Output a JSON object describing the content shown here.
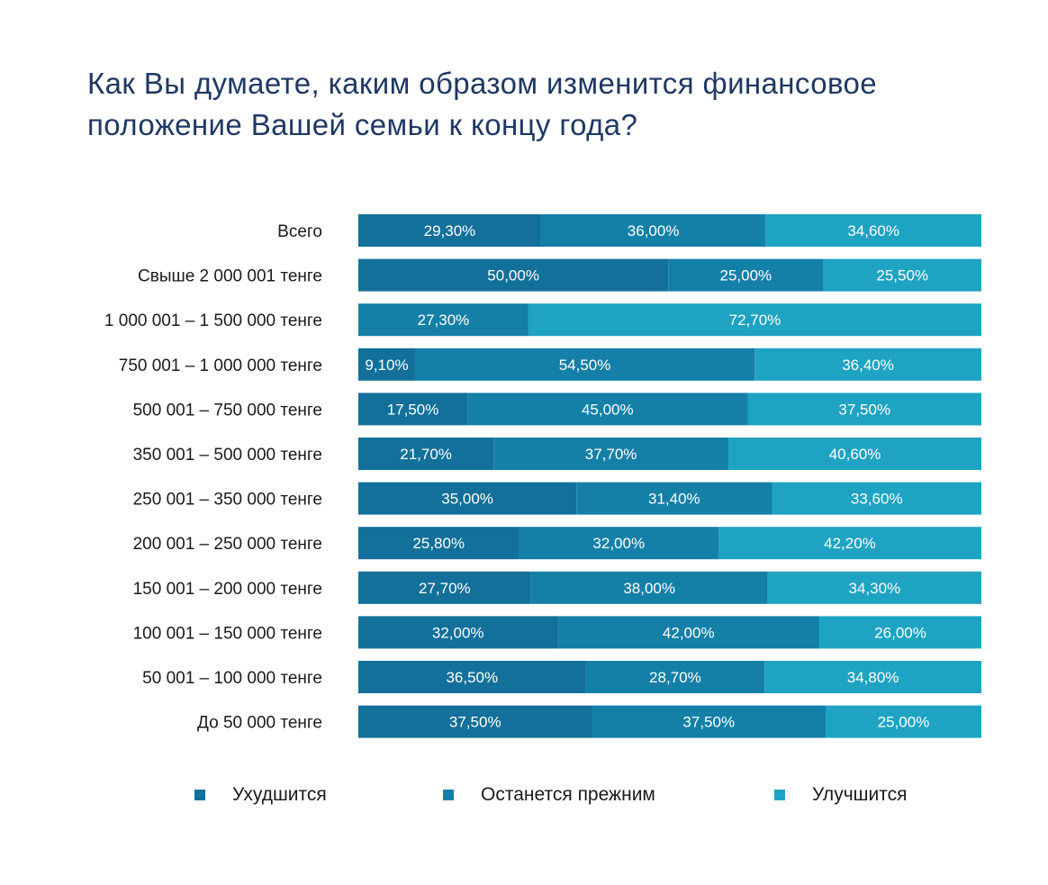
{
  "title": {
    "line1": "Как Вы думаете, каким образом изменится финансовое",
    "line2": "положение Вашей семьи  к концу года?"
  },
  "colors": {
    "worse": "#12709a",
    "same": "#1480a8",
    "better": "#1fa3c3"
  },
  "chart_data": {
    "type": "bar",
    "orientation": "horizontal",
    "stacked": true,
    "normalized": true,
    "grid": false,
    "legend_position": "bottom",
    "categories": [
      "Всего",
      "Свыше 2 000 001 тенге",
      "1 000 001 – 1 500 000 тенге",
      "750 001 – 1 000 000 тенге",
      "500 001 – 750 000 тенге",
      "350 001 – 500 000 тенге",
      "250 001 – 350 000 тенге",
      "200 001 – 250 000 тенге",
      "150 001 – 200 000 тенге",
      "100 001 – 150 000 тенге",
      "50 001 – 100 000 тенге",
      "До 50 000 тенге"
    ],
    "series": [
      {
        "name": "Ухудшится",
        "color": "#12709a",
        "values": [
          29.3,
          50.0,
          0,
          9.1,
          17.5,
          21.7,
          35.0,
          25.8,
          27.7,
          32.0,
          36.5,
          37.5
        ],
        "labels": [
          "29,30%",
          "50,00%",
          "",
          "9,10%",
          "17,50%",
          "21,70%",
          "35,00%",
          "25,80%",
          "27,70%",
          "32,00%",
          "36,50%",
          "37,50%"
        ]
      },
      {
        "name": "Останется прежним",
        "color": "#1480a8",
        "values": [
          36.0,
          25.0,
          27.3,
          54.5,
          45.0,
          37.7,
          31.4,
          32.0,
          38.0,
          42.0,
          28.7,
          37.5
        ],
        "labels": [
          "36,00%",
          "25,00%",
          "27,30%",
          "54,50%",
          "45,00%",
          "37,70%",
          "31,40%",
          "32,00%",
          "38,00%",
          "42,00%",
          "28,70%",
          "37,50%"
        ]
      },
      {
        "name": "Улучшится",
        "color": "#1fa3c3",
        "values": [
          34.6,
          25.5,
          72.7,
          36.4,
          37.5,
          40.6,
          33.6,
          42.2,
          34.3,
          26.0,
          34.8,
          25.0
        ],
        "labels": [
          "34,60%",
          "25,50%",
          "72,70%",
          "36,40%",
          "37,50%",
          "40,60%",
          "33,60%",
          "42,20%",
          "34,30%",
          "26,00%",
          "34,80%",
          "25,00%"
        ]
      }
    ]
  }
}
